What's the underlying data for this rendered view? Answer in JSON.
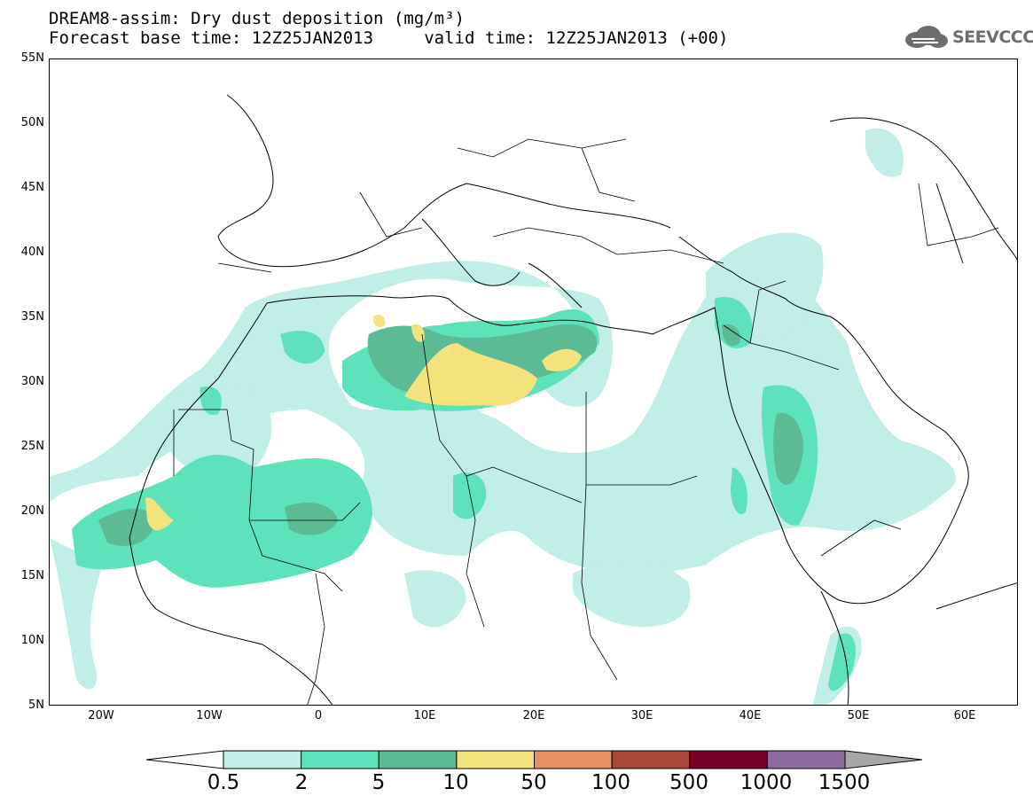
{
  "header": {
    "title": "DREAM8-assim: Dry dust deposition (mg/m³)",
    "subtitle": "Forecast base time: 12Z25JAN2013     valid time: 12Z25JAN2013 (+00)"
  },
  "logo": {
    "text": "SEEVCCC",
    "icon": "cloud-icon"
  },
  "map": {
    "projection": "latitude-longitude",
    "lon_range": [
      -25,
      65
    ],
    "lat_range": [
      5,
      55
    ],
    "lat_labels": [
      "55N",
      "50N",
      "45N",
      "40N",
      "35N",
      "30N",
      "25N",
      "20N",
      "15N",
      "10N",
      "5N"
    ],
    "lon_labels": [
      "20W",
      "10W",
      "0",
      "10E",
      "20E",
      "30E",
      "40E",
      "50E",
      "60E"
    ]
  },
  "legend": {
    "thresholds": [
      "0.5",
      "2",
      "5",
      "10",
      "50",
      "100",
      "500",
      "1000",
      "1500"
    ],
    "colors": [
      "#ffffff",
      "#c1eee6",
      "#5ee2ba",
      "#5cbb94",
      "#f4e27c",
      "#ea9163",
      "#a9473a",
      "#7b0028",
      "#8c6b9e",
      "#a7a7a7"
    ]
  }
}
